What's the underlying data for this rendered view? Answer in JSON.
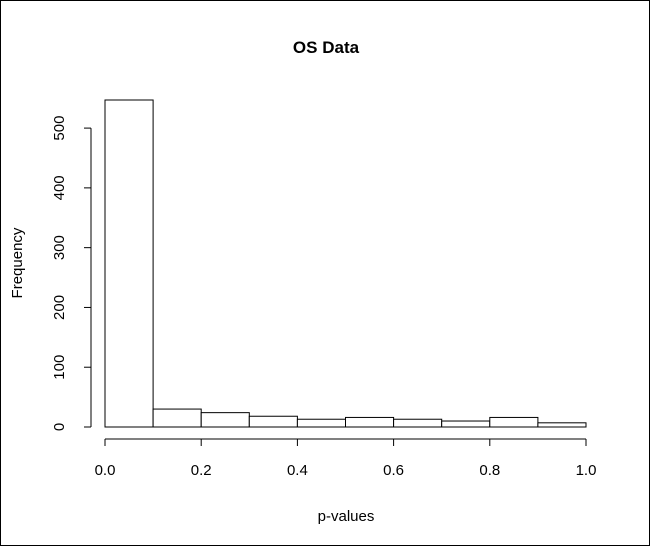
{
  "chart_data": {
    "type": "bar",
    "title": "OS Data",
    "xlabel": "p-values",
    "ylabel": "Frequency",
    "bins": [
      {
        "start": 0.0,
        "end": 0.1,
        "value": 547
      },
      {
        "start": 0.1,
        "end": 0.2,
        "value": 30
      },
      {
        "start": 0.2,
        "end": 0.3,
        "value": 24
      },
      {
        "start": 0.3,
        "end": 0.4,
        "value": 18
      },
      {
        "start": 0.4,
        "end": 0.5,
        "value": 13
      },
      {
        "start": 0.5,
        "end": 0.6,
        "value": 16
      },
      {
        "start": 0.6,
        "end": 0.7,
        "value": 13
      },
      {
        "start": 0.7,
        "end": 0.8,
        "value": 10
      },
      {
        "start": 0.8,
        "end": 0.9,
        "value": 16
      },
      {
        "start": 0.9,
        "end": 1.0,
        "value": 7
      }
    ],
    "xlim": [
      0.0,
      1.0
    ],
    "ylim": [
      0,
      547
    ],
    "x_ticks": [
      "0.0",
      "0.2",
      "0.4",
      "0.6",
      "0.8",
      "1.0"
    ],
    "y_ticks": [
      "0",
      "100",
      "200",
      "300",
      "400",
      "500"
    ],
    "grid": false
  }
}
